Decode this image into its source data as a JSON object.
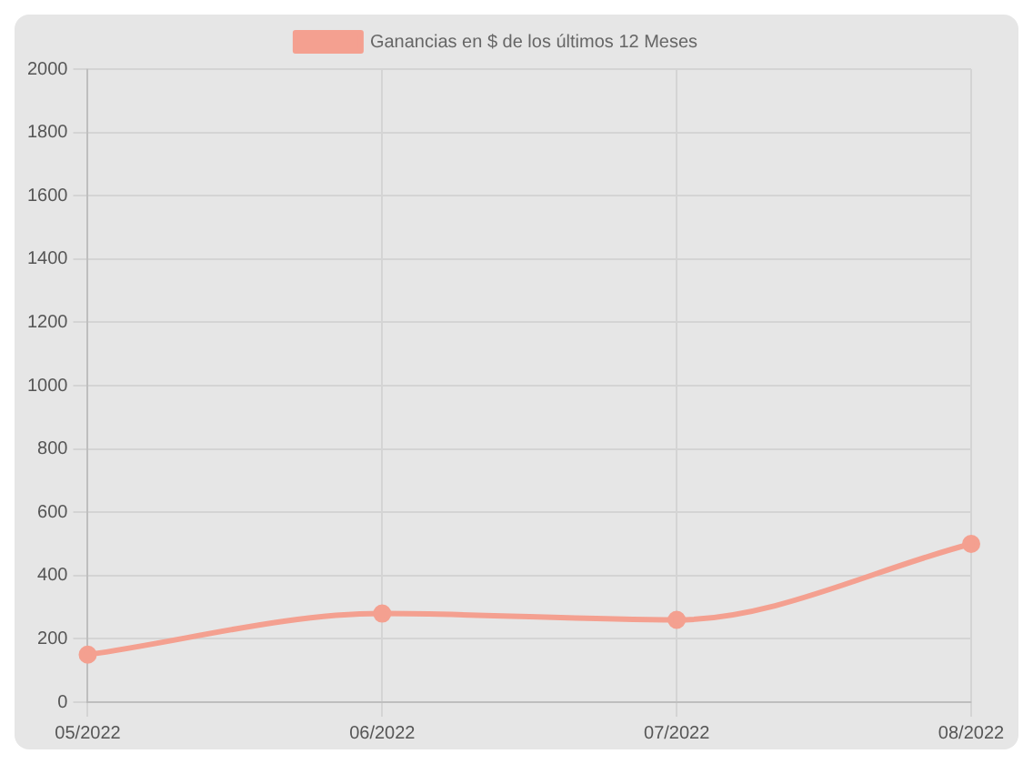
{
  "chart_data": {
    "type": "line",
    "categories": [
      "05/2022",
      "06/2022",
      "07/2022",
      "08/2022"
    ],
    "series": [
      {
        "name": "Ganancias en $ de los últimos 12 Meses",
        "color": "#f4a090",
        "values": [
          150,
          280,
          260,
          500
        ]
      }
    ],
    "ylim": [
      0,
      2000
    ],
    "yticks": [
      0,
      200,
      400,
      600,
      800,
      1000,
      1200,
      1400,
      1600,
      1800,
      2000
    ],
    "grid": true,
    "legend": "top",
    "marker": "circle",
    "line_style": "solid"
  }
}
